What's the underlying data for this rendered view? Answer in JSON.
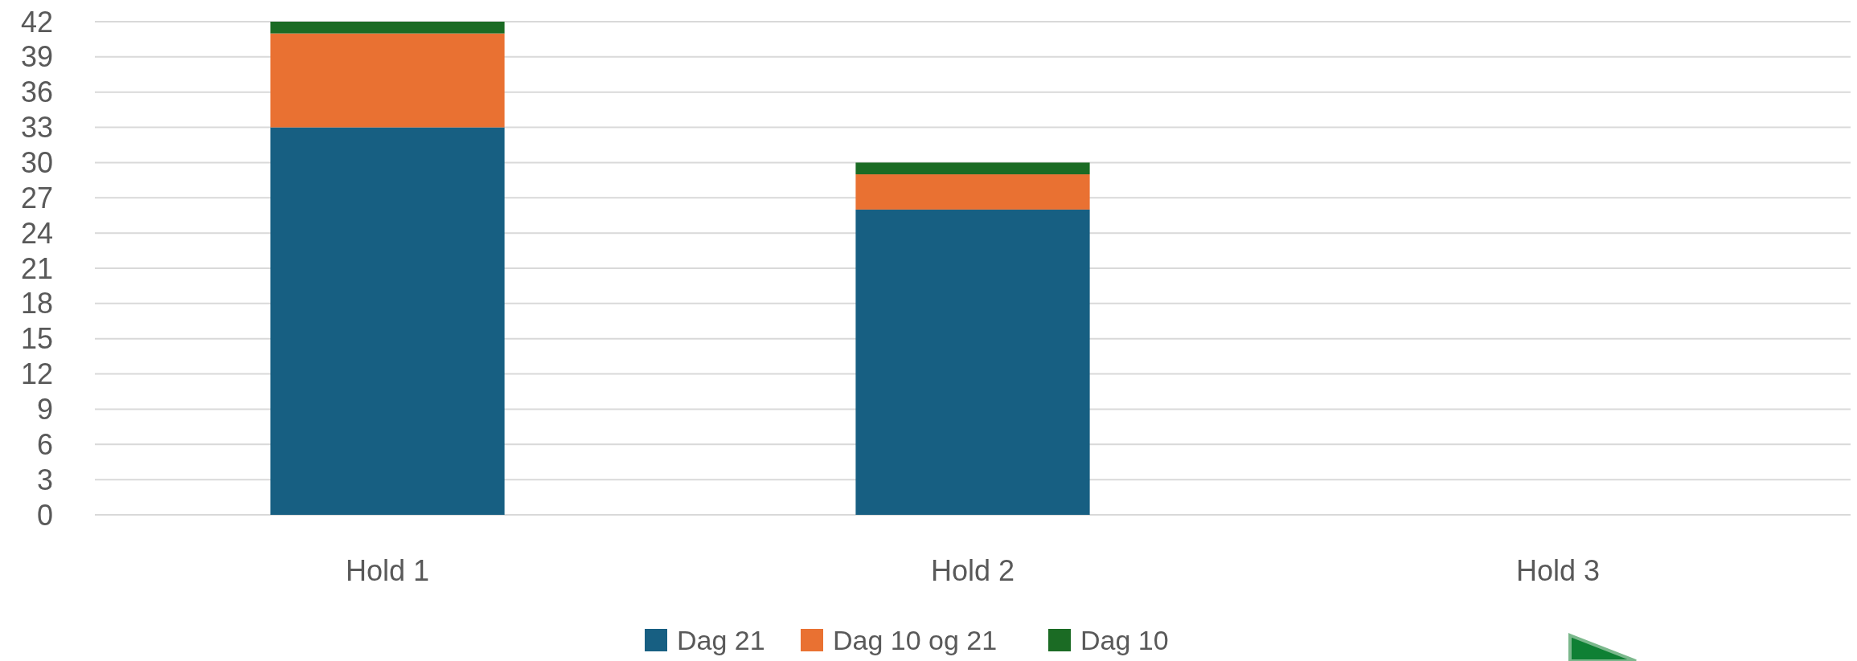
{
  "chart_data": {
    "type": "bar",
    "stacked": true,
    "categories": [
      "Hold 1",
      "Hold 2",
      "Hold 3"
    ],
    "series": [
      {
        "name": "Dag 21",
        "color": "#175f82",
        "values": [
          33,
          26,
          0
        ]
      },
      {
        "name": "Dag 10 og 21",
        "color": "#e97132",
        "values": [
          8,
          3,
          0
        ]
      },
      {
        "name": "Dag 10",
        "color": "#1b6b24",
        "values": [
          1,
          1,
          0
        ]
      }
    ],
    "ylim": [
      0,
      42
    ],
    "yticks": [
      0,
      3,
      6,
      9,
      12,
      15,
      18,
      21,
      24,
      27,
      30,
      33,
      36,
      39,
      42
    ],
    "grid": "y",
    "legend": "bottom"
  }
}
